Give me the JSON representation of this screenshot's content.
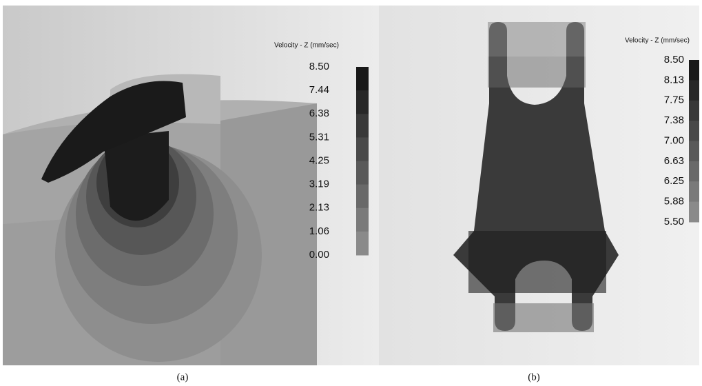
{
  "panels": [
    {
      "legend_title": "Velocity - Z (mm/sec)",
      "legend_labels": [
        "8.50",
        "7.44",
        "6.38",
        "5.31",
        "4.25",
        "3.19",
        "2.13",
        "1.06",
        "0.00"
      ],
      "caption": "(a)"
    },
    {
      "legend_title": "Velocity - Z (mm/sec)",
      "legend_labels": [
        "8.50",
        "8.13",
        "7.75",
        "7.38",
        "7.00",
        "6.63",
        "6.25",
        "5.88",
        "5.50"
      ],
      "caption": "(b)"
    }
  ]
}
